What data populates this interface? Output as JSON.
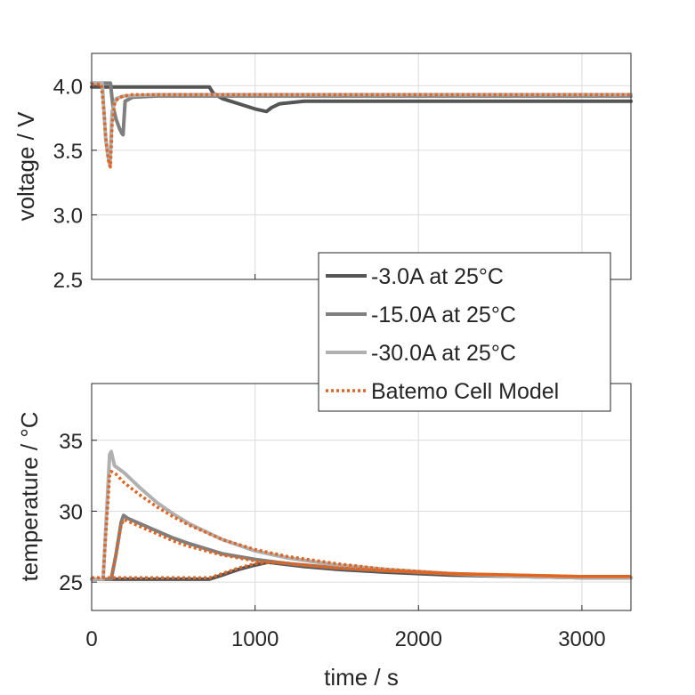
{
  "chart_data": [
    {
      "type": "line",
      "xlabel": "",
      "ylabel": "voltage / V",
      "xlim": [
        0,
        3300
      ],
      "ylim": [
        2.5,
        4.25
      ],
      "xticks": [
        0,
        1000,
        2000,
        3000
      ],
      "xtick_labels_shown": false,
      "yticks": [
        "2.5",
        "3.0",
        "3.5",
        "4.0"
      ],
      "grid": true,
      "series": [
        {
          "name": "-3.0A at 25°C",
          "color": "#555555",
          "style": "solid",
          "x": [
            0,
            720,
            745,
            800,
            900,
            1000,
            1070,
            1100,
            1150,
            1300,
            2000,
            3300
          ],
          "y": [
            3.99,
            3.99,
            3.94,
            3.9,
            3.86,
            3.82,
            3.8,
            3.83,
            3.86,
            3.88,
            3.88,
            3.88
          ]
        },
        {
          "name": "-15.0A at 25°C",
          "color": "#7f7f7f",
          "style": "solid",
          "x": [
            0,
            115,
            130,
            150,
            170,
            185,
            192,
            205,
            250,
            400,
            1000,
            3300
          ],
          "y": [
            4.02,
            4.02,
            3.84,
            3.74,
            3.67,
            3.63,
            3.62,
            3.88,
            3.91,
            3.92,
            3.92,
            3.92
          ]
        },
        {
          "name": "-30.0A at 25°C",
          "color": "#b0b0b0",
          "style": "solid",
          "x": [
            0,
            65,
            75,
            85,
            95,
            105,
            112,
            125,
            150,
            200,
            400,
            3300
          ],
          "y": [
            4.02,
            4.02,
            3.8,
            3.6,
            3.5,
            3.42,
            3.38,
            3.8,
            3.9,
            3.92,
            3.93,
            3.93
          ]
        },
        {
          "name": "Batemo Cell Model",
          "color": "#e3641e",
          "style": "dotted",
          "x": [
            0,
            60,
            75,
            90,
            100,
            108,
            115,
            125,
            140,
            160,
            190,
            250,
            400,
            3300
          ],
          "y": [
            4.01,
            4.01,
            3.8,
            3.55,
            3.44,
            3.39,
            3.37,
            3.7,
            3.86,
            3.9,
            3.92,
            3.93,
            3.93,
            3.93
          ]
        }
      ]
    },
    {
      "type": "line",
      "xlabel": "time / s",
      "ylabel": "temperature / °C",
      "xlim": [
        0,
        3300
      ],
      "ylim": [
        23,
        39
      ],
      "xticks": [
        "0",
        "1000",
        "2000",
        "3000"
      ],
      "yticks": [
        "25",
        "30",
        "35"
      ],
      "grid": true,
      "legend": {
        "placement": "upper-right"
      },
      "series": [
        {
          "name": "-3.0A at 25°C",
          "color": "#555555",
          "style": "solid",
          "x": [
            0,
            720,
            800,
            900,
            1000,
            1080,
            1150,
            1300,
            1500,
            1800,
            2200,
            2600,
            3000,
            3300
          ],
          "y": [
            25.2,
            25.2,
            25.5,
            25.9,
            26.2,
            26.4,
            26.3,
            26.1,
            25.9,
            25.7,
            25.5,
            25.4,
            25.3,
            25.3
          ]
        },
        {
          "name": "-15.0A at 25°C",
          "color": "#7f7f7f",
          "style": "solid",
          "x": [
            0,
            120,
            150,
            180,
            195,
            220,
            300,
            400,
            500,
            600,
            800,
            1000,
            1200,
            1500,
            1800,
            2200,
            2600,
            3000,
            3300
          ],
          "y": [
            25.2,
            25.2,
            27.0,
            29.2,
            29.7,
            29.5,
            29.1,
            28.6,
            28.1,
            27.7,
            27.0,
            26.6,
            26.3,
            26.0,
            25.8,
            25.6,
            25.4,
            25.3,
            25.3
          ]
        },
        {
          "name": "-30.0A at 25°C",
          "color": "#b0b0b0",
          "style": "solid",
          "x": [
            0,
            70,
            90,
            110,
            120,
            140,
            200,
            300,
            400,
            500,
            600,
            800,
            1000,
            1200,
            1500,
            1800,
            2200,
            2600,
            3000,
            3300
          ],
          "y": [
            25.2,
            25.2,
            29.5,
            34.0,
            34.2,
            33.2,
            32.7,
            31.6,
            30.6,
            29.8,
            29.1,
            28.0,
            27.2,
            26.7,
            26.2,
            25.9,
            25.6,
            25.4,
            25.3,
            25.3
          ]
        },
        {
          "name": "Batemo Cell Model",
          "color": "#e3641e",
          "style": "dotted",
          "x": [
            0,
            70,
            90,
            110,
            120,
            150,
            200,
            300,
            400,
            500,
            600,
            800,
            1000,
            1200,
            1500,
            1800,
            2200,
            2600,
            3000,
            3300
          ],
          "y": [
            25.3,
            25.3,
            29.0,
            32.5,
            32.8,
            32.6,
            32.0,
            31.1,
            30.3,
            29.6,
            29.0,
            28.0,
            27.3,
            26.8,
            26.3,
            25.9,
            25.6,
            25.5,
            25.4,
            25.4
          ]
        },
        {
          "name": "Batemo Cell Model",
          "color": "#e3641e",
          "style": "dotted",
          "x": [
            0,
            120,
            150,
            180,
            195,
            220,
            300,
            400,
            500,
            600,
            800,
            1000,
            1200,
            1500,
            1800,
            2200,
            2600,
            3000,
            3300
          ],
          "y": [
            25.3,
            25.3,
            27.0,
            29.0,
            29.4,
            29.3,
            28.9,
            28.4,
            27.9,
            27.5,
            26.9,
            26.5,
            26.3,
            26.0,
            25.8,
            25.6,
            25.5,
            25.4,
            25.4
          ]
        },
        {
          "name": "Batemo Cell Model",
          "color": "#e3641e",
          "style": "dotted",
          "x": [
            0,
            720,
            800,
            900,
            1000,
            1080,
            1150,
            1300,
            1500,
            1800,
            2200,
            2600,
            3000,
            3300
          ],
          "y": [
            25.3,
            25.3,
            25.6,
            26.0,
            26.3,
            26.4,
            26.4,
            26.2,
            26.0,
            25.8,
            25.6,
            25.5,
            25.4,
            25.4
          ]
        }
      ]
    }
  ]
}
